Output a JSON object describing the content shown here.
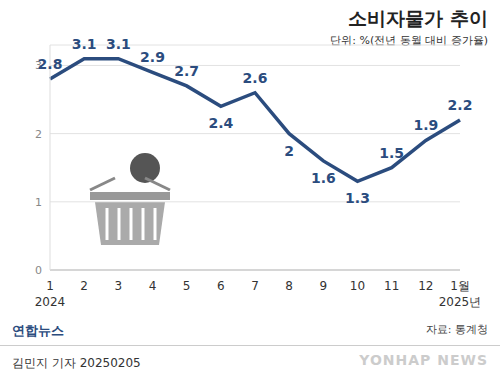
{
  "chart_data": {
    "type": "line",
    "title": "소비자물가 추이",
    "subtitle": "단위: %(전년 동월 대비 증가율)",
    "categories": [
      "1",
      "2",
      "3",
      "4",
      "5",
      "6",
      "7",
      "8",
      "9",
      "10",
      "11",
      "12",
      "1월"
    ],
    "year_labels": [
      "2024",
      "2025년"
    ],
    "values": [
      2.8,
      3.1,
      3.1,
      2.9,
      2.7,
      2.4,
      2.6,
      2.0,
      1.6,
      1.3,
      1.5,
      1.9,
      2.2
    ],
    "color": "#2b4c7e",
    "ylim": [
      0,
      3.3
    ],
    "yticks": [
      0,
      1,
      2,
      3
    ],
    "grid": true,
    "data_labels": true,
    "source": "자료: 통계청",
    "publisher": "연합뉴스",
    "credit": "김민지 기자 20250205",
    "watermark": "YONHAP NEWS"
  }
}
